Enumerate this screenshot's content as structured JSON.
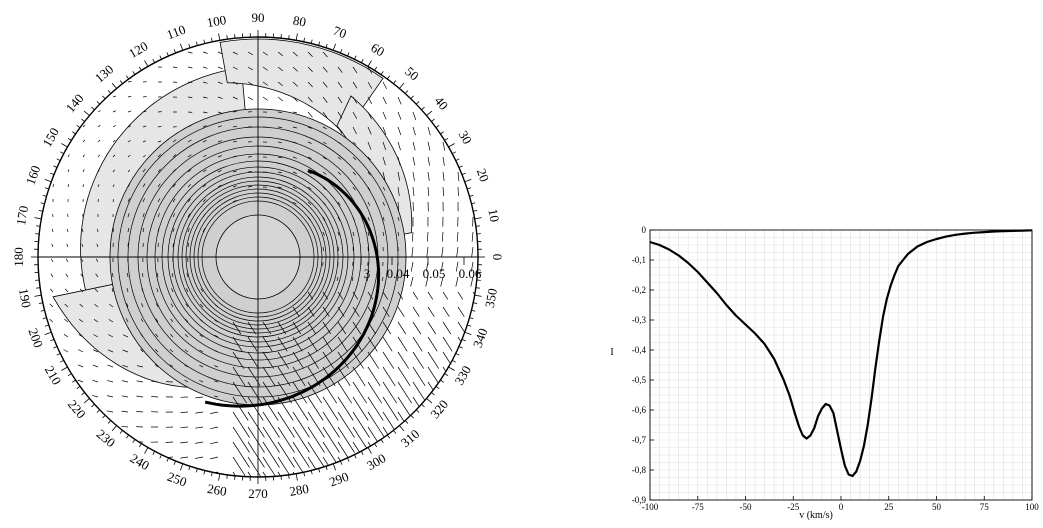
{
  "polar_plot": {
    "angle_ticks": [
      "0",
      "10",
      "20",
      "30",
      "40",
      "50",
      "60",
      "70",
      "80",
      "90",
      "100",
      "110",
      "120",
      "130",
      "140",
      "150",
      "160",
      "170",
      "180",
      "190",
      "200",
      "210",
      "220",
      "230",
      "240",
      "250",
      "260",
      "270",
      "280",
      "290",
      "300",
      "310",
      "320",
      "330",
      "340",
      "350"
    ],
    "angle_tick_values": [
      0,
      10,
      20,
      30,
      40,
      50,
      60,
      70,
      80,
      90,
      100,
      110,
      120,
      130,
      140,
      150,
      160,
      170,
      180,
      190,
      200,
      210,
      220,
      230,
      240,
      250,
      260,
      270,
      280,
      290,
      300,
      310,
      320,
      330,
      340,
      350
    ],
    "radial_tick_labels": [
      "3",
      "0.04",
      "0.05",
      "0.06"
    ],
    "colors": {
      "shade_light": "#e6e6e6",
      "shade_mid": "#cfcfcf",
      "line": "#000000"
    }
  },
  "chart_data": {
    "type": "line",
    "title": "",
    "xlabel": "v (km/s)",
    "ylabel": "I",
    "xlim": [
      -100,
      100
    ],
    "ylim": [
      -0.9,
      0
    ],
    "x_ticks": [
      -100,
      -75,
      -50,
      -25,
      0,
      25,
      50,
      75,
      100
    ],
    "x_tick_labels": [
      "-100",
      "-75",
      "-50",
      "-25",
      "0",
      "25",
      "50",
      "75",
      "100"
    ],
    "y_ticks": [
      0,
      -0.1,
      -0.2,
      -0.3,
      -0.4,
      -0.5,
      -0.6,
      -0.7,
      -0.8,
      -0.9
    ],
    "y_tick_labels": [
      "0",
      "-0,1",
      "-0,2",
      "-0,3",
      "-0,4",
      "-0,5",
      "-0,6",
      "-0,7",
      "-0,8",
      "-0,9"
    ],
    "grid": true,
    "series": [
      {
        "x": [
          -100,
          -95,
          -90,
          -85,
          -80,
          -75,
          -70,
          -65,
          -60,
          -55,
          -50,
          -45,
          -40,
          -35,
          -30,
          -27,
          -24,
          -22,
          -20,
          -18,
          -16,
          -14,
          -12,
          -10,
          -8,
          -6,
          -4,
          -2,
          0,
          2,
          4,
          6,
          8,
          10,
          12,
          14,
          16,
          18,
          20,
          22,
          24,
          26,
          28,
          30,
          35,
          40,
          45,
          50,
          55,
          60,
          65,
          70,
          75,
          80,
          85,
          90,
          95,
          100
        ],
        "y": [
          -0.04,
          -0.05,
          -0.065,
          -0.085,
          -0.11,
          -0.14,
          -0.175,
          -0.21,
          -0.25,
          -0.285,
          -0.315,
          -0.345,
          -0.38,
          -0.43,
          -0.5,
          -0.55,
          -0.615,
          -0.655,
          -0.685,
          -0.695,
          -0.685,
          -0.66,
          -0.62,
          -0.595,
          -0.58,
          -0.585,
          -0.61,
          -0.67,
          -0.73,
          -0.785,
          -0.815,
          -0.82,
          -0.805,
          -0.77,
          -0.72,
          -0.65,
          -0.56,
          -0.46,
          -0.37,
          -0.29,
          -0.23,
          -0.185,
          -0.15,
          -0.12,
          -0.08,
          -0.055,
          -0.04,
          -0.03,
          -0.022,
          -0.016,
          -0.012,
          -0.009,
          -0.007,
          -0.005,
          -0.004,
          -0.003,
          -0.002,
          -0.001
        ]
      }
    ]
  }
}
